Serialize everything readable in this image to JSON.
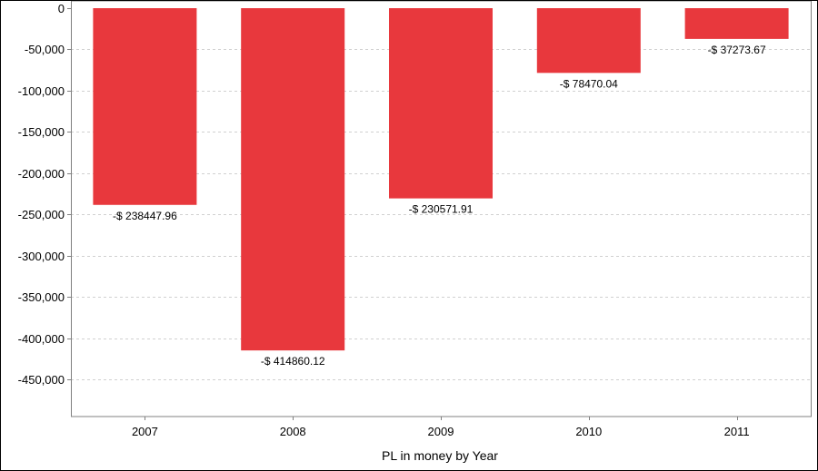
{
  "chart_data": {
    "type": "bar",
    "title": "",
    "xlabel": "PL in money by Year",
    "ylabel": "",
    "categories": [
      "2007",
      "2008",
      "2009",
      "2010",
      "2011"
    ],
    "values": [
      -238447.96,
      -414860.12,
      -230571.91,
      -78470.04,
      -37273.67
    ],
    "data_labels": [
      "-$ 238447.96",
      "-$ 414860.12",
      "-$ 230571.91",
      "-$ 78470.04",
      "-$ 37273.67"
    ],
    "ylim": [
      -495000,
      0
    ],
    "y_ticks": [
      0,
      -50000,
      -100000,
      -150000,
      -200000,
      -250000,
      -300000,
      -350000,
      -400000,
      -450000
    ],
    "y_tick_labels": [
      "0",
      "-50,000",
      "-100,000",
      "-150,000",
      "-200,000",
      "-250,000",
      "-300,000",
      "-350,000",
      "-400,000",
      "-450,000"
    ],
    "grid": true,
    "legend": "none",
    "colors": {
      "bar": "#e8383d",
      "grid": "#d0d0d0",
      "axis": "#808080"
    }
  }
}
